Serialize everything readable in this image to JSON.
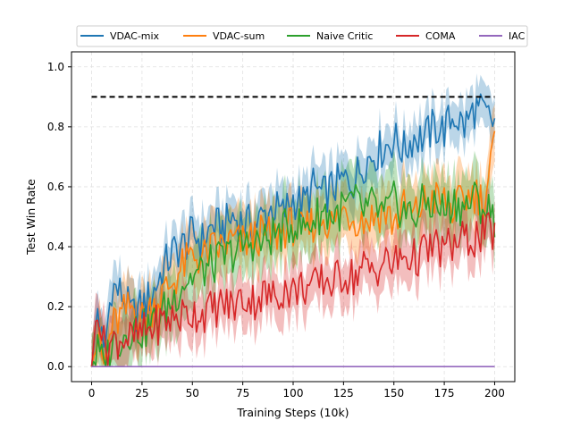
{
  "chart_data": {
    "type": "line",
    "xlabel": "Training Steps (10k)",
    "ylabel": "Test Win Rate",
    "xlim": [
      -10,
      210
    ],
    "ylim": [
      -0.05,
      1.05
    ],
    "x_ticks": [
      0,
      25,
      50,
      75,
      100,
      125,
      150,
      175,
      200
    ],
    "y_ticks": [
      0.0,
      0.2,
      0.4,
      0.6,
      0.8,
      1.0
    ],
    "x_tick_labels": [
      "0",
      "25",
      "50",
      "75",
      "100",
      "125",
      "150",
      "175",
      "200"
    ],
    "y_tick_labels": [
      "0.0",
      "0.2",
      "0.4",
      "0.6",
      "0.8",
      "1.0"
    ],
    "grid": true,
    "legend_position": "top",
    "reference_line": {
      "y": 0.9,
      "x_range": [
        0,
        200
      ],
      "style": "dashed",
      "color": "#000000"
    },
    "series": [
      {
        "name": "VDAC-mix",
        "color": "#1f77b4",
        "x": [
          0,
          3,
          6,
          10,
          15,
          20,
          25,
          30,
          35,
          40,
          45,
          50,
          55,
          60,
          65,
          70,
          75,
          80,
          85,
          90,
          95,
          100,
          105,
          110,
          115,
          120,
          125,
          130,
          135,
          140,
          145,
          150,
          155,
          160,
          165,
          170,
          175,
          180,
          185,
          190,
          195,
          200
        ],
        "values": [
          0.0,
          0.2,
          0.03,
          0.27,
          0.24,
          0.17,
          0.2,
          0.24,
          0.32,
          0.38,
          0.4,
          0.44,
          0.42,
          0.47,
          0.46,
          0.5,
          0.48,
          0.47,
          0.5,
          0.53,
          0.51,
          0.56,
          0.54,
          0.6,
          0.57,
          0.6,
          0.62,
          0.62,
          0.68,
          0.71,
          0.73,
          0.76,
          0.72,
          0.77,
          0.76,
          0.8,
          0.79,
          0.84,
          0.8,
          0.86,
          0.84,
          0.81
        ],
        "band": 0.06
      },
      {
        "name": "VDAC-sum",
        "color": "#ff7f0e",
        "x": [
          0,
          3,
          6,
          10,
          15,
          20,
          25,
          30,
          35,
          40,
          45,
          50,
          55,
          60,
          65,
          70,
          75,
          80,
          85,
          90,
          95,
          100,
          105,
          110,
          115,
          120,
          125,
          130,
          135,
          140,
          145,
          150,
          155,
          160,
          165,
          170,
          175,
          180,
          185,
          190,
          195,
          200
        ],
        "values": [
          0.0,
          0.1,
          0.0,
          0.13,
          0.17,
          0.2,
          0.16,
          0.2,
          0.24,
          0.28,
          0.33,
          0.37,
          0.36,
          0.39,
          0.4,
          0.42,
          0.41,
          0.43,
          0.44,
          0.43,
          0.46,
          0.47,
          0.44,
          0.48,
          0.5,
          0.47,
          0.52,
          0.5,
          0.49,
          0.5,
          0.52,
          0.48,
          0.53,
          0.5,
          0.55,
          0.56,
          0.55,
          0.52,
          0.56,
          0.58,
          0.55,
          0.75
        ],
        "band": 0.08
      },
      {
        "name": "Naive Critic",
        "color": "#2ca02c",
        "x": [
          0,
          3,
          6,
          10,
          15,
          20,
          25,
          30,
          35,
          40,
          45,
          50,
          55,
          60,
          65,
          70,
          75,
          80,
          85,
          90,
          95,
          100,
          105,
          110,
          115,
          120,
          125,
          130,
          135,
          140,
          145,
          150,
          155,
          160,
          165,
          170,
          175,
          180,
          185,
          190,
          195,
          200
        ],
        "values": [
          0.0,
          0.05,
          0.0,
          0.08,
          0.1,
          0.13,
          0.12,
          0.14,
          0.18,
          0.22,
          0.28,
          0.3,
          0.32,
          0.34,
          0.36,
          0.38,
          0.4,
          0.42,
          0.41,
          0.44,
          0.45,
          0.48,
          0.46,
          0.49,
          0.52,
          0.5,
          0.53,
          0.55,
          0.52,
          0.54,
          0.5,
          0.55,
          0.52,
          0.5,
          0.55,
          0.54,
          0.52,
          0.55,
          0.53,
          0.56,
          0.53,
          0.5
        ],
        "band": 0.09
      },
      {
        "name": "COMA",
        "color": "#d62728",
        "x": [
          0,
          3,
          6,
          10,
          15,
          20,
          25,
          30,
          35,
          40,
          45,
          50,
          55,
          60,
          65,
          70,
          75,
          80,
          85,
          90,
          95,
          100,
          105,
          110,
          115,
          120,
          125,
          130,
          135,
          140,
          145,
          150,
          155,
          160,
          165,
          170,
          175,
          180,
          185,
          190,
          195,
          200
        ],
        "values": [
          0.0,
          0.22,
          0.07,
          0.08,
          0.1,
          0.09,
          0.11,
          0.13,
          0.15,
          0.16,
          0.17,
          0.18,
          0.18,
          0.19,
          0.21,
          0.2,
          0.23,
          0.22,
          0.24,
          0.23,
          0.26,
          0.25,
          0.27,
          0.26,
          0.29,
          0.28,
          0.31,
          0.3,
          0.33,
          0.32,
          0.35,
          0.34,
          0.37,
          0.36,
          0.38,
          0.4,
          0.39,
          0.41,
          0.42,
          0.43,
          0.44,
          0.45
        ],
        "band": 0.07
      },
      {
        "name": "IAC",
        "color": "#9467bd",
        "x": [
          0,
          200
        ],
        "values": [
          0.0,
          0.0
        ],
        "band": 0.0
      }
    ]
  }
}
